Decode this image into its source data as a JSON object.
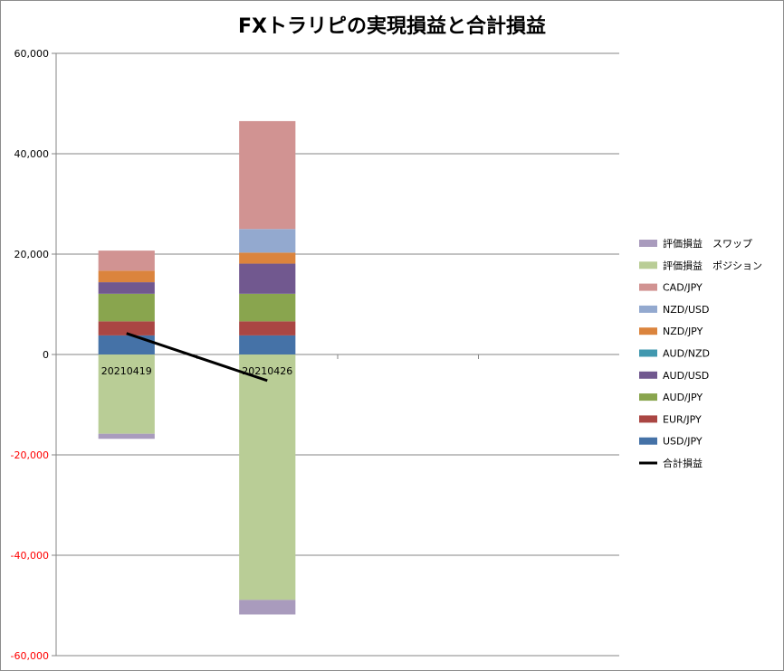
{
  "chart_data": {
    "type": "bar",
    "stacked": true,
    "title": "FXトラリピの実現損益と合計損益",
    "xlabel": "",
    "ylabel": "",
    "categories": [
      "20210419",
      "20210426",
      "",
      ""
    ],
    "ylim": [
      -60000,
      60000
    ],
    "ytick_step": 20000,
    "yticks": [
      "-60,000",
      "-40,000",
      "-20,000",
      "0",
      "20,000",
      "40,000",
      "60,000"
    ],
    "grid": true,
    "legend_position": "right",
    "negative_tick_color": "#ff0000",
    "series": [
      {
        "name": "USD/JPY",
        "color": "#4572a7",
        "values": [
          3800,
          3800,
          null,
          null
        ]
      },
      {
        "name": "EUR/JPY",
        "color": "#aa4643",
        "values": [
          2800,
          2800,
          null,
          null
        ]
      },
      {
        "name": "AUD/JPY",
        "color": "#89a54e",
        "values": [
          5500,
          5500,
          null,
          null
        ]
      },
      {
        "name": "AUD/USD",
        "color": "#71588f",
        "values": [
          2300,
          6000,
          null,
          null
        ]
      },
      {
        "name": "AUD/NZD",
        "color": "#4198af",
        "values": [
          0,
          0,
          null,
          null
        ]
      },
      {
        "name": "NZD/JPY",
        "color": "#db843d",
        "values": [
          2300,
          2200,
          null,
          null
        ]
      },
      {
        "name": "NZD/USD",
        "color": "#93a9cf",
        "values": [
          0,
          4700,
          null,
          null
        ]
      },
      {
        "name": "CAD/JPY",
        "color": "#d19392",
        "values": [
          4000,
          21500,
          null,
          null
        ]
      },
      {
        "name": "評価損益　ポジション",
        "color": "#b9cd96",
        "values": [
          -15800,
          -48900,
          null,
          null
        ]
      },
      {
        "name": "評価損益　スワップ",
        "color": "#a99bbd",
        "values": [
          -1000,
          -2900,
          null,
          null
        ]
      }
    ],
    "line_series": {
      "name": "合計損益",
      "color": "#000000",
      "values": [
        4200,
        -5200,
        null,
        null
      ]
    }
  }
}
